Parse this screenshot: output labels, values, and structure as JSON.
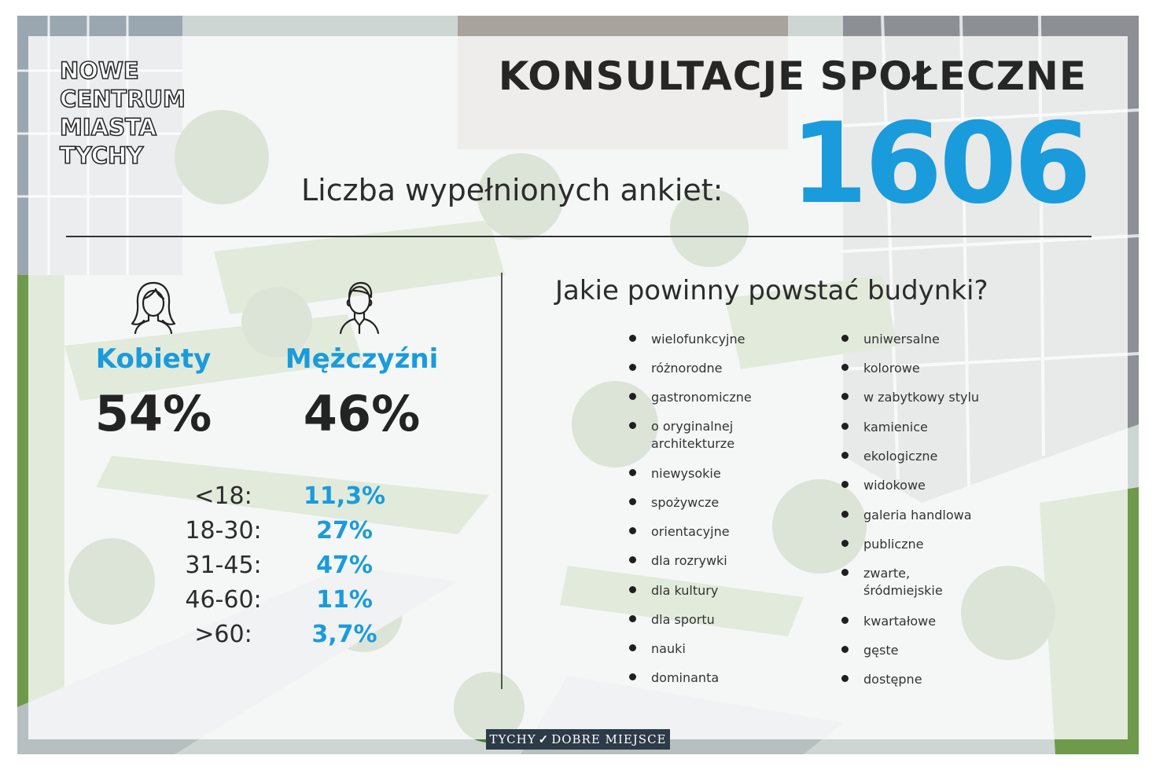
{
  "logo": [
    "NOWE",
    "CENTRUM",
    "MIASTA",
    "TYCHY"
  ],
  "header": {
    "title": "KONSULTACJE SPOŁECZNE",
    "survey_label": "Liczba wypełnionych ankiet:",
    "survey_count": "1606"
  },
  "gender": {
    "women": {
      "label": "Kobiety",
      "percent": "54%",
      "icon": "woman-icon"
    },
    "men": {
      "label": "Mężczyźni",
      "percent": "46%",
      "icon": "man-icon"
    }
  },
  "age_groups": [
    {
      "label": "<18:",
      "value": "11,3%"
    },
    {
      "label": "18-30:",
      "value": "27%"
    },
    {
      "label": "31-45:",
      "value": "47%"
    },
    {
      "label": "46-60:",
      "value": "11%"
    },
    {
      "label": ">60:",
      "value": "3,7%"
    }
  ],
  "buildings": {
    "question": "Jakie powinny powstać budynki?",
    "left": [
      "wielofunkcyjne",
      "różnorodne",
      "gastronomiczne",
      "o oryginalnej architekturze",
      "niewysokie",
      "spożywcze",
      "orientacyjne",
      "dla rozrywki",
      "dla kultury",
      "dla sportu",
      "nauki",
      "dominanta"
    ],
    "right": [
      "uniwersalne",
      "kolorowe",
      "w zabytkowy stylu",
      "kamienice",
      "ekologiczne",
      "widokowe",
      "galeria handlowa",
      "publiczne",
      "zwarte, śródmiejskie",
      "kwartałowe",
      "gęste",
      "dostępne"
    ]
  },
  "footer": {
    "left": "TYCHY",
    "right": "DOBRE MIEJSCE"
  },
  "colors": {
    "accent": "#1a9bdc",
    "text": "#262626"
  }
}
